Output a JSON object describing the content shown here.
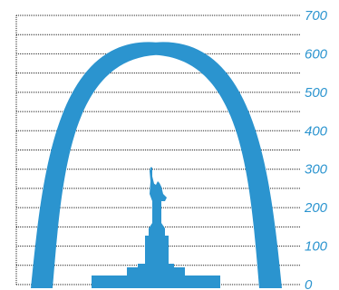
{
  "chart_data": {
    "type": "bar",
    "title": "",
    "xlabel": "",
    "ylabel": "",
    "ylim": [
      0,
      700
    ],
    "yticks": [
      0,
      100,
      200,
      300,
      400,
      500,
      600,
      700
    ],
    "minor_gridline_step": 50,
    "grid": true,
    "tick_color": "#2b94cf",
    "shape_color": "#2b94cf",
    "categories": [
      "Gateway Arch",
      "Statue of Liberty"
    ],
    "values": [
      630,
      305
    ],
    "icons": [
      "arch-icon",
      "statue-of-liberty-icon"
    ]
  }
}
